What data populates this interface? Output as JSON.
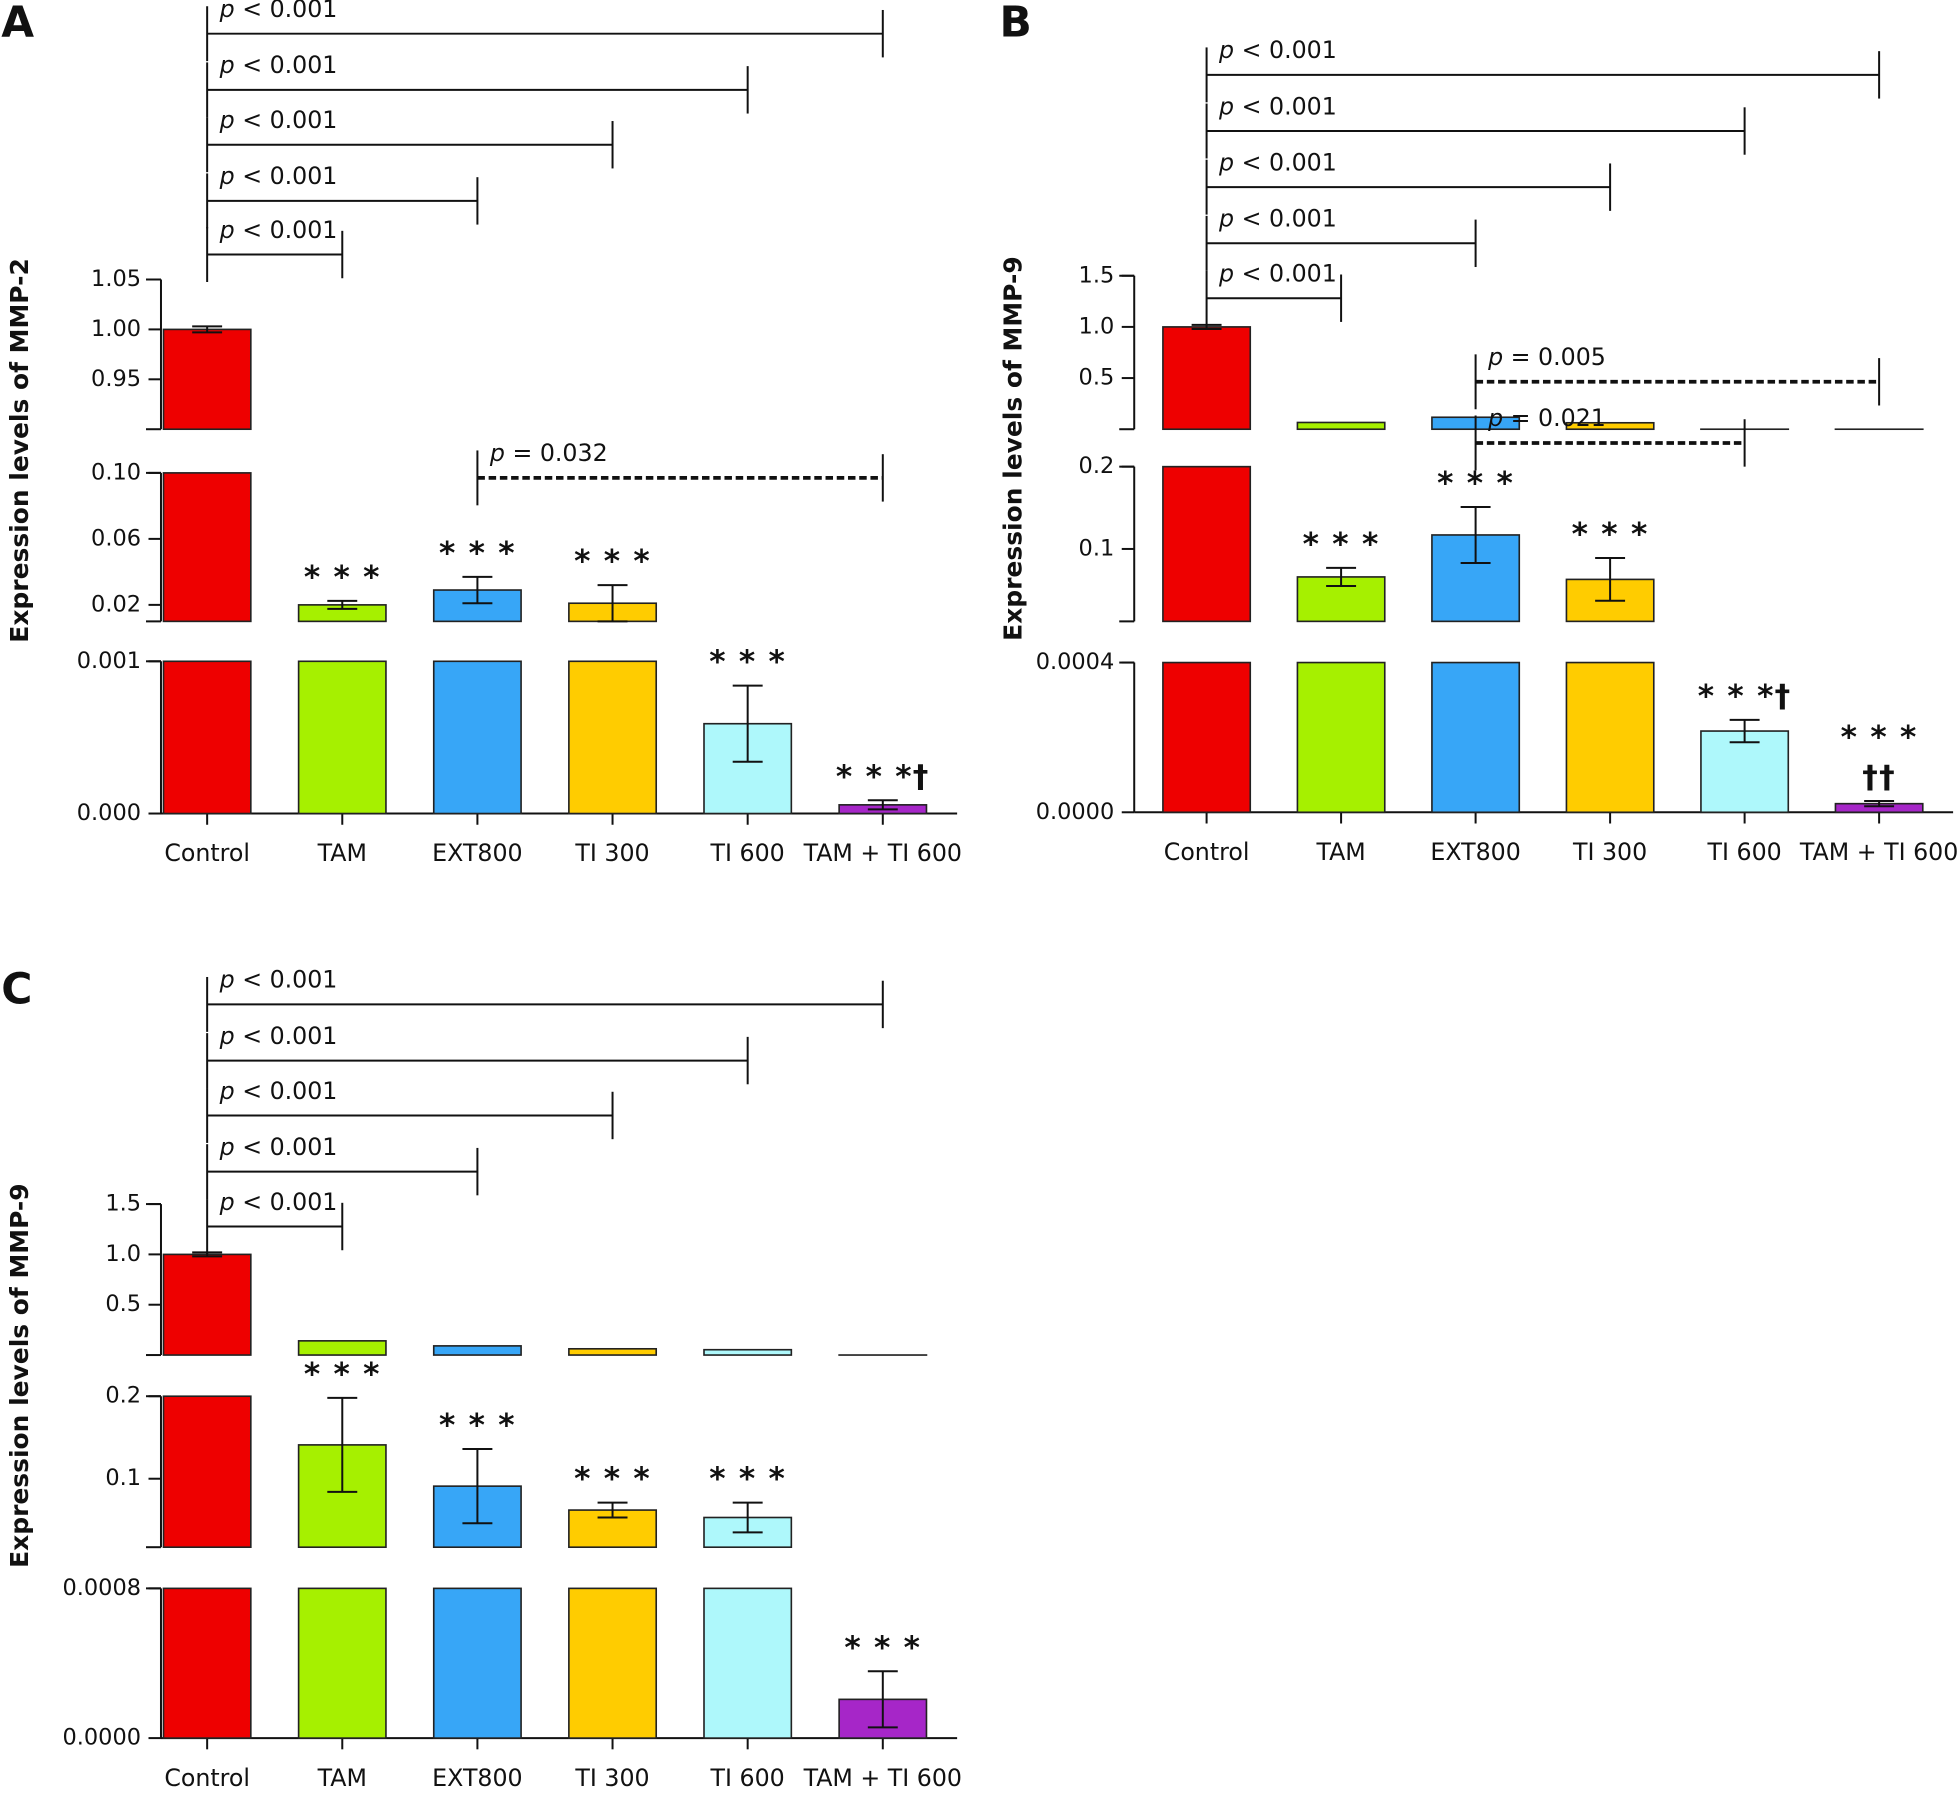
{
  "chart_data": [
    {
      "type": "bar",
      "panel_label": "A",
      "ylabel": "Expression levels of MMP-2",
      "categories": [
        "Control",
        "TAM",
        "EXT800",
        "TI 300",
        "TI 600",
        "TAM + TI 600"
      ],
      "colors": [
        "#ee0000",
        "#a6f000",
        "#37a6f7",
        "#ffcc00",
        "#aef8fb",
        "#a626c8"
      ],
      "values": [
        1.0,
        0.02,
        0.029,
        0.021,
        0.00059,
        5.7e-05
      ],
      "errors": [
        0.003,
        0.0024,
        0.008,
        0.011,
        0.00025,
        3e-05
      ],
      "annotations": [
        null,
        [
          "* * *"
        ],
        [
          "* * *"
        ],
        [
          "* * *"
        ],
        [
          "* * *"
        ],
        [
          "* * *†"
        ]
      ],
      "segments": [
        {
          "ylim": [
            0,
            0.001
          ],
          "yticks": [
            {
              "value": 0,
              "label": "0.000"
            },
            0.001
          ]
        },
        {
          "ylim": [
            0.01,
            0.1
          ],
          "yticks": [
            0.02,
            0.06,
            {
              "value": 0.1,
              "label": "0.10"
            }
          ]
        },
        {
          "ylim": [
            0.9,
            1.05
          ],
          "yticks": [
            0.95,
            {
              "value": 1.0,
              "label": "1.00"
            },
            1.05
          ]
        }
      ],
      "comparisons": [
        {
          "groups": [
            "Control",
            "TAM"
          ],
          "label": "p < 0.001",
          "style": "solid"
        },
        {
          "groups": [
            "Control",
            "EXT800"
          ],
          "label": "p < 0.001",
          "style": "solid"
        },
        {
          "groups": [
            "Control",
            "TI 300"
          ],
          "label": "p < 0.001",
          "style": "solid"
        },
        {
          "groups": [
            "Control",
            "TI 600"
          ],
          "label": "p < 0.001",
          "style": "solid"
        },
        {
          "groups": [
            "Control",
            "TAM + TI 600"
          ],
          "label": "p < 0.001",
          "style": "solid"
        },
        {
          "groups": [
            "EXT800",
            "TAM + TI 600"
          ],
          "label": "p = 0.032",
          "style": "dashed"
        }
      ]
    },
    {
      "type": "bar",
      "panel_label": "B",
      "ylabel": "Expression levels of MMP-9",
      "categories": [
        "Control",
        "TAM",
        "EXT800",
        "TI 300",
        "TI 600",
        "TAM + TI 600"
      ],
      "colors": [
        "#ee0000",
        "#a6f000",
        "#37a6f7",
        "#ffcc00",
        "#aef8fb",
        "#a626c8"
      ],
      "values": [
        1.0,
        0.066,
        0.117,
        0.063,
        0.000217,
        2.3e-05
      ],
      "errors": [
        0.02,
        0.011,
        0.034,
        0.026,
        3e-05,
        7e-06
      ],
      "annotations": [
        null,
        [
          "* * *"
        ],
        [
          "* * *"
        ],
        [
          "* * *"
        ],
        [
          "* * *†"
        ],
        [
          "††",
          "* * *"
        ]
      ],
      "segments": [
        {
          "ylim": [
            0,
            0.0004
          ],
          "yticks": [
            {
              "value": 0,
              "label": "0.0000"
            },
            0.0004
          ]
        },
        {
          "ylim": [
            0.012,
            0.2
          ],
          "yticks": [
            0.1,
            0.2
          ]
        },
        {
          "ylim": [
            0,
            1.5
          ],
          "yticks": [
            0.5,
            {
              "value": 1.0,
              "label": "1.0"
            },
            1.5
          ]
        }
      ],
      "comparisons": [
        {
          "groups": [
            "Control",
            "TAM"
          ],
          "label": "p < 0.001",
          "style": "solid"
        },
        {
          "groups": [
            "Control",
            "EXT800"
          ],
          "label": "p < 0.001",
          "style": "solid"
        },
        {
          "groups": [
            "Control",
            "TI 300"
          ],
          "label": "p < 0.001",
          "style": "solid"
        },
        {
          "groups": [
            "Control",
            "TI 600"
          ],
          "label": "p < 0.001",
          "style": "solid"
        },
        {
          "groups": [
            "Control",
            "TAM + TI 600"
          ],
          "label": "p < 0.001",
          "style": "solid"
        },
        {
          "groups": [
            "EXT800",
            "TAM + TI 600"
          ],
          "label": "p = 0.005",
          "style": "dashed"
        },
        {
          "groups": [
            "EXT800",
            "TI 600"
          ],
          "label": "p = 0.021",
          "style": "dashed"
        }
      ]
    },
    {
      "type": "bar",
      "panel_label": "C",
      "ylabel": "Expression levels of MMP-9",
      "categories": [
        "Control",
        "TAM",
        "EXT800",
        "TI 300",
        "TI 600",
        "TAM + TI 600"
      ],
      "colors": [
        "#ee0000",
        "#a6f000",
        "#37a6f7",
        "#ffcc00",
        "#aef8fb",
        "#a626c8"
      ],
      "values": [
        1.0,
        0.141,
        0.091,
        0.062,
        0.053,
        0.000207
      ],
      "errors": [
        0.02,
        0.057,
        0.045,
        0.009,
        0.018,
        0.00015
      ],
      "annotations": [
        null,
        [
          "* * *"
        ],
        [
          "* * *"
        ],
        [
          "* * *"
        ],
        [
          "* * *"
        ],
        [
          "* * *"
        ]
      ],
      "segments": [
        {
          "ylim": [
            0,
            0.0008
          ],
          "yticks": [
            {
              "value": 0,
              "label": "0.0000"
            },
            0.0008
          ]
        },
        {
          "ylim": [
            0.017,
            0.2
          ],
          "yticks": [
            0.1,
            0.2
          ]
        },
        {
          "ylim": [
            0,
            1.5
          ],
          "yticks": [
            0.5,
            {
              "value": 1.0,
              "label": "1.0"
            },
            1.5
          ]
        }
      ],
      "comparisons": [
        {
          "groups": [
            "Control",
            "TAM"
          ],
          "label": "p < 0.001",
          "style": "solid"
        },
        {
          "groups": [
            "Control",
            "EXT800"
          ],
          "label": "p < 0.001",
          "style": "solid"
        },
        {
          "groups": [
            "Control",
            "TI 300"
          ],
          "label": "p < 0.001",
          "style": "solid"
        },
        {
          "groups": [
            "Control",
            "TI 600"
          ],
          "label": "p < 0.001",
          "style": "solid"
        },
        {
          "groups": [
            "Control",
            "TAM + TI 600"
          ],
          "label": "p < 0.001",
          "style": "solid"
        }
      ]
    }
  ]
}
